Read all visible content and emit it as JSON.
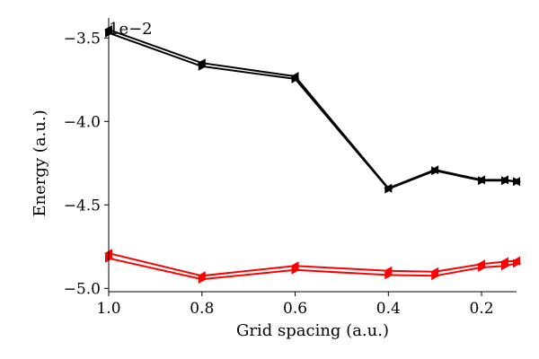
{
  "chart_data": {
    "type": "line",
    "xlabel": "Grid spacing (a.u.)",
    "ylabel": "Energy (a.u.)",
    "y_offset_label": "1e−2",
    "xlim": [
      1.0,
      0.125
    ],
    "ylim": [
      -5.02,
      -3.38
    ],
    "x_inverted": true,
    "x_ticks": [
      1.0,
      0.8,
      0.6,
      0.4,
      0.2
    ],
    "x_tick_labels": [
      "1.0",
      "0.8",
      "0.6",
      "0.4",
      "0.2"
    ],
    "y_ticks": [
      -5.0,
      -4.5,
      -4.0,
      -3.5
    ],
    "y_tick_labels": [
      "−5.0",
      "−4.5",
      "−4.0",
      "−3.5"
    ],
    "grid": false,
    "series": [
      {
        "color": "#000000",
        "marker_direction": "right",
        "x": [
          1.0,
          0.8,
          0.6,
          0.4,
          0.3,
          0.2,
          0.15,
          0.125
        ],
        "y": [
          -3.47,
          -3.67,
          -3.745,
          -4.405,
          -4.295,
          -4.355,
          -4.355,
          -4.36
        ]
      },
      {
        "color": "#000000",
        "marker_direction": "left",
        "x": [
          1.0,
          0.8,
          0.6,
          0.4,
          0.3,
          0.2,
          0.15,
          0.125
        ],
        "y": [
          -3.45,
          -3.65,
          -3.73,
          -4.4,
          -4.29,
          -4.35,
          -4.35,
          -4.36
        ]
      },
      {
        "color": "#ff0000",
        "marker_direction": "right",
        "x": [
          1.0,
          0.8,
          0.6,
          0.4,
          0.3,
          0.2,
          0.15,
          0.125
        ],
        "y": [
          -4.82,
          -4.945,
          -4.89,
          -4.92,
          -4.925,
          -4.875,
          -4.865,
          -4.85
        ]
      },
      {
        "color": "#ff0000",
        "marker_direction": "left",
        "x": [
          1.0,
          0.8,
          0.6,
          0.4,
          0.3,
          0.2,
          0.15,
          0.125
        ],
        "y": [
          -4.79,
          -4.925,
          -4.865,
          -4.895,
          -4.9,
          -4.855,
          -4.84,
          -4.835
        ]
      }
    ]
  }
}
